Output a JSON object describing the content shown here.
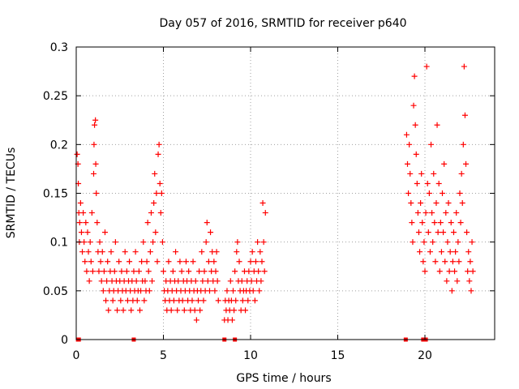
{
  "chart_data": {
    "type": "scatter",
    "title": "Day 057 of 2016, SRMTID for receiver p640",
    "xlabel": "GPS time / hours",
    "ylabel": "SRMTID / TECUs",
    "xlim": [
      0,
      24
    ],
    "ylim": [
      0,
      0.3
    ],
    "xticks": [
      0,
      5,
      10,
      15,
      20
    ],
    "xtick_labels": [
      "0",
      "5",
      "10",
      "15",
      "20"
    ],
    "yticks": [
      0,
      0.05,
      0.1,
      0.15,
      0.2,
      0.25,
      0.3
    ],
    "ytick_labels": [
      "0",
      "0.05",
      "0.1",
      "0.15",
      "0.2",
      "0.25",
      "0.3"
    ],
    "grid": true,
    "marker": "plus",
    "color": "#ff0000",
    "series": [
      {
        "name": "SRMTID",
        "points": [
          [
            0.05,
            0.19
          ],
          [
            0.1,
            0.18
          ],
          [
            0.12,
            0.16
          ],
          [
            0.15,
            0.13
          ],
          [
            0.18,
            0.1
          ],
          [
            0.2,
            0.12
          ],
          [
            0.25,
            0.14
          ],
          [
            0.3,
            0.11
          ],
          [
            0.35,
            0.09
          ],
          [
            0.4,
            0.13
          ],
          [
            0.45,
            0.1
          ],
          [
            0.5,
            0.08
          ],
          [
            0.55,
            0.12
          ],
          [
            0.6,
            0.07
          ],
          [
            0.65,
            0.11
          ],
          [
            0.7,
            0.09
          ],
          [
            0.75,
            0.06
          ],
          [
            0.8,
            0.1
          ],
          [
            0.85,
            0.08
          ],
          [
            0.9,
            0.13
          ],
          [
            0.95,
            0.07
          ],
          [
            1.0,
            0.17
          ],
          [
            1.02,
            0.2
          ],
          [
            1.05,
            0.22
          ],
          [
            1.1,
            0.225
          ],
          [
            1.12,
            0.18
          ],
          [
            1.15,
            0.15
          ],
          [
            1.2,
            0.12
          ],
          [
            1.25,
            0.09
          ],
          [
            1.3,
            0.07
          ],
          [
            1.35,
            0.1
          ],
          [
            1.4,
            0.08
          ],
          [
            1.45,
            0.06
          ],
          [
            1.5,
            0.09
          ],
          [
            1.55,
            0.05
          ],
          [
            1.6,
            0.07
          ],
          [
            1.65,
            0.11
          ],
          [
            1.7,
            0.04
          ],
          [
            1.75,
            0.06
          ],
          [
            1.8,
            0.08
          ],
          [
            1.85,
            0.03
          ],
          [
            1.9,
            0.05
          ],
          [
            1.95,
            0.07
          ],
          [
            2.0,
            0.09
          ],
          [
            2.05,
            0.06
          ],
          [
            2.1,
            0.04
          ],
          [
            2.15,
            0.05
          ],
          [
            2.2,
            0.07
          ],
          [
            2.25,
            0.1
          ],
          [
            2.3,
            0.06
          ],
          [
            2.35,
            0.03
          ],
          [
            2.4,
            0.05
          ],
          [
            2.45,
            0.08
          ],
          [
            2.5,
            0.06
          ],
          [
            2.55,
            0.04
          ],
          [
            2.6,
            0.07
          ],
          [
            2.65,
            0.05
          ],
          [
            2.7,
            0.03
          ],
          [
            2.75,
            0.06
          ],
          [
            2.8,
            0.09
          ],
          [
            2.85,
            0.05
          ],
          [
            2.9,
            0.07
          ],
          [
            2.95,
            0.04
          ],
          [
            3.0,
            0.06
          ],
          [
            3.05,
            0.08
          ],
          [
            3.1,
            0.05
          ],
          [
            3.15,
            0.03
          ],
          [
            3.2,
            0.06
          ],
          [
            3.25,
            0.04
          ],
          [
            3.3,
            0.07
          ],
          [
            3.35,
            0.05
          ],
          [
            3.4,
            0.09
          ],
          [
            3.45,
            0.06
          ],
          [
            3.5,
            0.04
          ],
          [
            3.55,
            0.05
          ],
          [
            3.6,
            0.07
          ],
          [
            3.65,
            0.03
          ],
          [
            3.7,
            0.05
          ],
          [
            3.75,
            0.08
          ],
          [
            3.8,
            0.06
          ],
          [
            3.85,
            0.1
          ],
          [
            3.9,
            0.04
          ],
          [
            3.95,
            0.06
          ],
          [
            4.0,
            0.05
          ],
          [
            4.05,
            0.08
          ],
          [
            4.1,
            0.12
          ],
          [
            4.15,
            0.07
          ],
          [
            4.2,
            0.05
          ],
          [
            4.25,
            0.09
          ],
          [
            4.3,
            0.13
          ],
          [
            4.35,
            0.06
          ],
          [
            4.4,
            0.1
          ],
          [
            4.45,
            0.14
          ],
          [
            4.5,
            0.17
          ],
          [
            4.55,
            0.11
          ],
          [
            4.6,
            0.15
          ],
          [
            4.65,
            0.08
          ],
          [
            4.7,
            0.19
          ],
          [
            4.75,
            0.2
          ],
          [
            4.8,
            0.16
          ],
          [
            4.85,
            0.13
          ],
          [
            4.9,
            0.15
          ],
          [
            4.95,
            0.1
          ],
          [
            5.0,
            0.07
          ],
          [
            5.05,
            0.05
          ],
          [
            5.1,
            0.04
          ],
          [
            5.15,
            0.06
          ],
          [
            5.2,
            0.03
          ],
          [
            5.25,
            0.05
          ],
          [
            5.3,
            0.08
          ],
          [
            5.35,
            0.04
          ],
          [
            5.4,
            0.06
          ],
          [
            5.45,
            0.03
          ],
          [
            5.5,
            0.05
          ],
          [
            5.55,
            0.07
          ],
          [
            5.6,
            0.04
          ],
          [
            5.65,
            0.06
          ],
          [
            5.7,
            0.09
          ],
          [
            5.75,
            0.05
          ],
          [
            5.8,
            0.03
          ],
          [
            5.85,
            0.06
          ],
          [
            5.9,
            0.04
          ],
          [
            5.95,
            0.08
          ],
          [
            6.0,
            0.05
          ],
          [
            6.05,
            0.07
          ],
          [
            6.1,
            0.04
          ],
          [
            6.15,
            0.06
          ],
          [
            6.2,
            0.03
          ],
          [
            6.25,
            0.05
          ],
          [
            6.3,
            0.08
          ],
          [
            6.35,
            0.06
          ],
          [
            6.4,
            0.04
          ],
          [
            6.45,
            0.07
          ],
          [
            6.5,
            0.05
          ],
          [
            6.55,
            0.03
          ],
          [
            6.6,
            0.06
          ],
          [
            6.65,
            0.04
          ],
          [
            6.7,
            0.08
          ],
          [
            6.75,
            0.05
          ],
          [
            6.8,
            0.03
          ],
          [
            6.85,
            0.06
          ],
          [
            6.9,
            0.02
          ],
          [
            6.95,
            0.05
          ],
          [
            7.0,
            0.04
          ],
          [
            7.05,
            0.07
          ],
          [
            7.1,
            0.03
          ],
          [
            7.15,
            0.05
          ],
          [
            7.2,
            0.09
          ],
          [
            7.25,
            0.06
          ],
          [
            7.3,
            0.04
          ],
          [
            7.35,
            0.07
          ],
          [
            7.4,
            0.05
          ],
          [
            7.45,
            0.1
          ],
          [
            7.5,
            0.12
          ],
          [
            7.55,
            0.06
          ],
          [
            7.6,
            0.08
          ],
          [
            7.65,
            0.05
          ],
          [
            7.7,
            0.11
          ],
          [
            7.75,
            0.07
          ],
          [
            7.8,
            0.09
          ],
          [
            7.85,
            0.06
          ],
          [
            7.9,
            0.08
          ],
          [
            7.95,
            0.05
          ],
          [
            8.0,
            0.07
          ],
          [
            8.05,
            0.09
          ],
          [
            8.1,
            0.06
          ],
          [
            8.15,
            0.04
          ],
          [
            8.5,
            0.02
          ],
          [
            8.55,
            0.04
          ],
          [
            8.6,
            0.03
          ],
          [
            8.65,
            0.05
          ],
          [
            8.7,
            0.02
          ],
          [
            8.75,
            0.04
          ],
          [
            8.8,
            0.03
          ],
          [
            8.85,
            0.06
          ],
          [
            8.9,
            0.04
          ],
          [
            8.95,
            0.02
          ],
          [
            9.0,
            0.05
          ],
          [
            9.05,
            0.03
          ],
          [
            9.1,
            0.07
          ],
          [
            9.15,
            0.04
          ],
          [
            9.2,
            0.09
          ],
          [
            9.25,
            0.1
          ],
          [
            9.3,
            0.06
          ],
          [
            9.35,
            0.08
          ],
          [
            9.4,
            0.05
          ],
          [
            9.45,
            0.03
          ],
          [
            9.5,
            0.06
          ],
          [
            9.55,
            0.04
          ],
          [
            9.6,
            0.05
          ],
          [
            9.65,
            0.07
          ],
          [
            9.7,
            0.03
          ],
          [
            9.75,
            0.05
          ],
          [
            9.8,
            0.06
          ],
          [
            9.85,
            0.04
          ],
          [
            9.9,
            0.07
          ],
          [
            9.95,
            0.05
          ],
          [
            10.0,
            0.08
          ],
          [
            10.05,
            0.06
          ],
          [
            10.1,
            0.09
          ],
          [
            10.15,
            0.05
          ],
          [
            10.2,
            0.07
          ],
          [
            10.25,
            0.04
          ],
          [
            10.3,
            0.08
          ],
          [
            10.35,
            0.06
          ],
          [
            10.4,
            0.1
          ],
          [
            10.45,
            0.07
          ],
          [
            10.5,
            0.05
          ],
          [
            10.55,
            0.09
          ],
          [
            10.6,
            0.06
          ],
          [
            10.65,
            0.08
          ],
          [
            10.7,
            0.14
          ],
          [
            10.75,
            0.1
          ],
          [
            10.8,
            0.07
          ],
          [
            10.85,
            0.13
          ],
          [
            18.95,
            0.21
          ],
          [
            19.0,
            0.18
          ],
          [
            19.05,
            0.15
          ],
          [
            19.1,
            0.2
          ],
          [
            19.15,
            0.17
          ],
          [
            19.2,
            0.14
          ],
          [
            19.25,
            0.12
          ],
          [
            19.3,
            0.1
          ],
          [
            19.35,
            0.24
          ],
          [
            19.4,
            0.27
          ],
          [
            19.45,
            0.22
          ],
          [
            19.5,
            0.19
          ],
          [
            19.55,
            0.16
          ],
          [
            19.6,
            0.13
          ],
          [
            19.65,
            0.11
          ],
          [
            19.7,
            0.09
          ],
          [
            19.75,
            0.14
          ],
          [
            19.8,
            0.17
          ],
          [
            19.85,
            0.12
          ],
          [
            19.9,
            0.08
          ],
          [
            19.95,
            0.1
          ],
          [
            20.0,
            0.07
          ],
          [
            20.05,
            0.13
          ],
          [
            20.1,
            0.28
          ],
          [
            20.15,
            0.16
          ],
          [
            20.2,
            0.11
          ],
          [
            20.25,
            0.15
          ],
          [
            20.3,
            0.09
          ],
          [
            20.35,
            0.2
          ],
          [
            20.4,
            0.13
          ],
          [
            20.45,
            0.1
          ],
          [
            20.5,
            0.17
          ],
          [
            20.55,
            0.12
          ],
          [
            20.6,
            0.08
          ],
          [
            20.65,
            0.14
          ],
          [
            20.7,
            0.22
          ],
          [
            20.75,
            0.11
          ],
          [
            20.8,
            0.16
          ],
          [
            20.85,
            0.07
          ],
          [
            20.9,
            0.12
          ],
          [
            20.95,
            0.09
          ],
          [
            21.0,
            0.15
          ],
          [
            21.05,
            0.11
          ],
          [
            21.1,
            0.18
          ],
          [
            21.15,
            0.08
          ],
          [
            21.2,
            0.13
          ],
          [
            21.25,
            0.06
          ],
          [
            21.3,
            0.1
          ],
          [
            21.35,
            0.14
          ],
          [
            21.4,
            0.07
          ],
          [
            21.45,
            0.09
          ],
          [
            21.5,
            0.12
          ],
          [
            21.55,
            0.05
          ],
          [
            21.6,
            0.08
          ],
          [
            21.65,
            0.11
          ],
          [
            21.7,
            0.07
          ],
          [
            21.75,
            0.09
          ],
          [
            21.8,
            0.13
          ],
          [
            21.85,
            0.06
          ],
          [
            21.9,
            0.1
          ],
          [
            21.95,
            0.08
          ],
          [
            22.0,
            0.15
          ],
          [
            22.05,
            0.12
          ],
          [
            22.1,
            0.17
          ],
          [
            22.15,
            0.14
          ],
          [
            22.2,
            0.2
          ],
          [
            22.25,
            0.28
          ],
          [
            22.3,
            0.23
          ],
          [
            22.35,
            0.18
          ],
          [
            22.4,
            0.11
          ],
          [
            22.45,
            0.07
          ],
          [
            22.5,
            0.09
          ],
          [
            22.55,
            0.06
          ],
          [
            22.6,
            0.08
          ],
          [
            22.65,
            0.05
          ],
          [
            22.7,
            0.1
          ],
          [
            22.75,
            0.07
          ]
        ]
      }
    ],
    "baseline_markers": [
      0.1,
      0.15,
      3.3,
      8.5,
      9.1,
      18.9,
      19.9,
      20.05
    ]
  }
}
